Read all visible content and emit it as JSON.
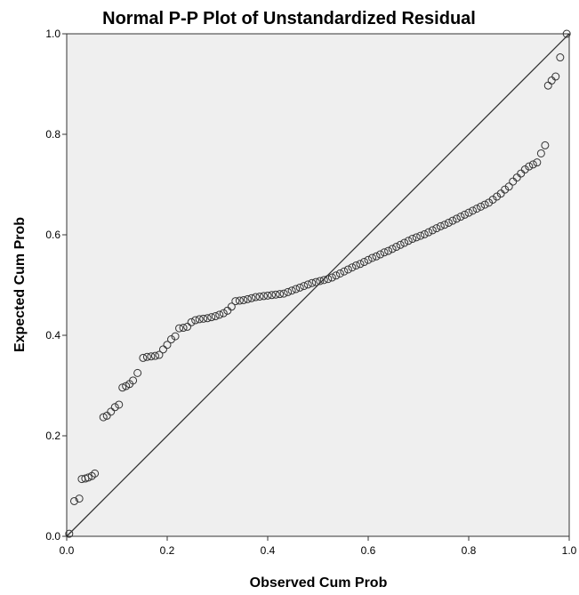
{
  "chart_data": {
    "type": "scatter",
    "title": "Normal P-P Plot of Unstandardized Residual",
    "xlabel": "Observed Cum Prob",
    "ylabel": "Expected Cum Prob",
    "xlim": [
      0,
      1
    ],
    "ylim": [
      0,
      1
    ],
    "xticks": [
      0.0,
      0.2,
      0.4,
      0.6,
      0.8,
      1.0
    ],
    "yticks": [
      0.0,
      0.2,
      0.4,
      0.6,
      0.8,
      1.0
    ],
    "xtick_labels": [
      "0.0",
      "0.2",
      "0.4",
      "0.6",
      "0.8",
      "1.0"
    ],
    "ytick_labels": [
      "0.0",
      "0.2",
      "0.4",
      "0.6",
      "0.8",
      "1.0"
    ],
    "grid": false,
    "reference_line": {
      "from": [
        0,
        0
      ],
      "to": [
        1,
        1
      ]
    },
    "colors": {
      "plot_background": "#efefef",
      "marker_stroke": "#333333",
      "line": "#333333"
    },
    "series": [
      {
        "points": [
          [
            0.005,
            0.005
          ],
          [
            0.015,
            0.07
          ],
          [
            0.025,
            0.075
          ],
          [
            0.03,
            0.114
          ],
          [
            0.037,
            0.115
          ],
          [
            0.043,
            0.117
          ],
          [
            0.05,
            0.12
          ],
          [
            0.056,
            0.125
          ],
          [
            0.073,
            0.237
          ],
          [
            0.08,
            0.24
          ],
          [
            0.088,
            0.248
          ],
          [
            0.096,
            0.257
          ],
          [
            0.104,
            0.262
          ],
          [
            0.111,
            0.296
          ],
          [
            0.118,
            0.299
          ],
          [
            0.125,
            0.303
          ],
          [
            0.132,
            0.31
          ],
          [
            0.141,
            0.325
          ],
          [
            0.152,
            0.355
          ],
          [
            0.16,
            0.357
          ],
          [
            0.168,
            0.358
          ],
          [
            0.176,
            0.359
          ],
          [
            0.184,
            0.361
          ],
          [
            0.192,
            0.372
          ],
          [
            0.2,
            0.381
          ],
          [
            0.208,
            0.392
          ],
          [
            0.216,
            0.398
          ],
          [
            0.224,
            0.414
          ],
          [
            0.232,
            0.415
          ],
          [
            0.24,
            0.417
          ],
          [
            0.248,
            0.426
          ],
          [
            0.256,
            0.43
          ],
          [
            0.264,
            0.432
          ],
          [
            0.272,
            0.433
          ],
          [
            0.28,
            0.434
          ],
          [
            0.288,
            0.436
          ],
          [
            0.296,
            0.438
          ],
          [
            0.304,
            0.441
          ],
          [
            0.312,
            0.444
          ],
          [
            0.32,
            0.449
          ],
          [
            0.328,
            0.457
          ],
          [
            0.336,
            0.468
          ],
          [
            0.344,
            0.469
          ],
          [
            0.352,
            0.47
          ],
          [
            0.36,
            0.472
          ],
          [
            0.368,
            0.474
          ],
          [
            0.376,
            0.476
          ],
          [
            0.384,
            0.477
          ],
          [
            0.392,
            0.478
          ],
          [
            0.4,
            0.479
          ],
          [
            0.408,
            0.48
          ],
          [
            0.416,
            0.481
          ],
          [
            0.424,
            0.482
          ],
          [
            0.432,
            0.483
          ],
          [
            0.44,
            0.486
          ],
          [
            0.448,
            0.489
          ],
          [
            0.456,
            0.492
          ],
          [
            0.464,
            0.495
          ],
          [
            0.472,
            0.498
          ],
          [
            0.48,
            0.501
          ],
          [
            0.488,
            0.504
          ],
          [
            0.496,
            0.506
          ],
          [
            0.504,
            0.508
          ],
          [
            0.512,
            0.51
          ],
          [
            0.52,
            0.512
          ],
          [
            0.528,
            0.515
          ],
          [
            0.536,
            0.519
          ],
          [
            0.544,
            0.523
          ],
          [
            0.552,
            0.527
          ],
          [
            0.56,
            0.531
          ],
          [
            0.568,
            0.535
          ],
          [
            0.576,
            0.539
          ],
          [
            0.584,
            0.542
          ],
          [
            0.592,
            0.546
          ],
          [
            0.6,
            0.55
          ],
          [
            0.608,
            0.554
          ],
          [
            0.616,
            0.557
          ],
          [
            0.624,
            0.561
          ],
          [
            0.632,
            0.565
          ],
          [
            0.64,
            0.568
          ],
          [
            0.648,
            0.572
          ],
          [
            0.656,
            0.576
          ],
          [
            0.664,
            0.58
          ],
          [
            0.672,
            0.584
          ],
          [
            0.68,
            0.588
          ],
          [
            0.688,
            0.592
          ],
          [
            0.696,
            0.595
          ],
          [
            0.704,
            0.598
          ],
          [
            0.712,
            0.601
          ],
          [
            0.72,
            0.605
          ],
          [
            0.728,
            0.609
          ],
          [
            0.736,
            0.613
          ],
          [
            0.744,
            0.617
          ],
          [
            0.752,
            0.62
          ],
          [
            0.76,
            0.624
          ],
          [
            0.768,
            0.628
          ],
          [
            0.776,
            0.632
          ],
          [
            0.784,
            0.636
          ],
          [
            0.792,
            0.64
          ],
          [
            0.8,
            0.644
          ],
          [
            0.808,
            0.648
          ],
          [
            0.816,
            0.652
          ],
          [
            0.824,
            0.656
          ],
          [
            0.832,
            0.66
          ],
          [
            0.84,
            0.664
          ],
          [
            0.848,
            0.67
          ],
          [
            0.856,
            0.676
          ],
          [
            0.864,
            0.682
          ],
          [
            0.872,
            0.69
          ],
          [
            0.88,
            0.696
          ],
          [
            0.888,
            0.706
          ],
          [
            0.896,
            0.714
          ],
          [
            0.904,
            0.722
          ],
          [
            0.912,
            0.73
          ],
          [
            0.92,
            0.736
          ],
          [
            0.928,
            0.74
          ],
          [
            0.936,
            0.744
          ],
          [
            0.944,
            0.762
          ],
          [
            0.952,
            0.778
          ],
          [
            0.958,
            0.897
          ],
          [
            0.965,
            0.907
          ],
          [
            0.973,
            0.915
          ],
          [
            0.982,
            0.953
          ],
          [
            0.995,
            1.0
          ]
        ]
      }
    ]
  }
}
